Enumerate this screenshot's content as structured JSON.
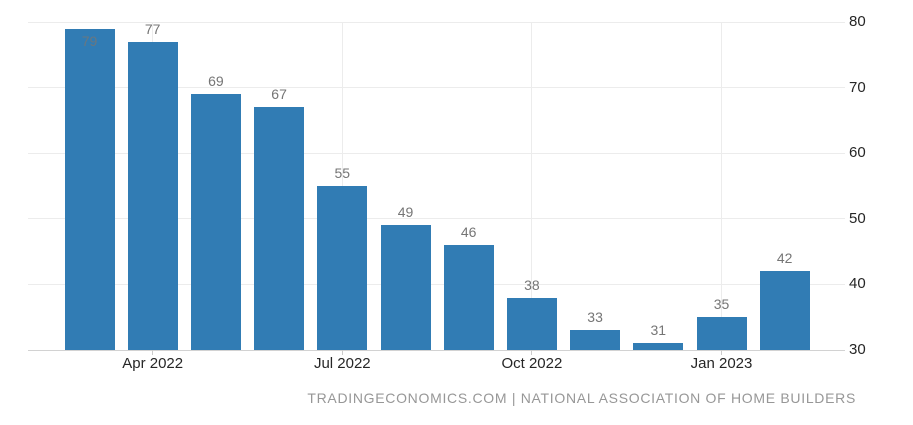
{
  "chart_data": {
    "type": "bar",
    "title": "",
    "xlabel": "",
    "ylabel": "",
    "values": [
      79,
      77,
      69,
      67,
      55,
      49,
      46,
      38,
      33,
      31,
      35,
      42
    ],
    "x_ticks": [
      {
        "label": "Apr 2022",
        "bar_index": 1
      },
      {
        "label": "Jul 2022",
        "bar_index": 4
      },
      {
        "label": "Oct 2022",
        "bar_index": 7
      },
      {
        "label": "Jan 2023",
        "bar_index": 10
      }
    ],
    "y_ticks": [
      30,
      40,
      50,
      60,
      70,
      80
    ],
    "ylim": [
      30,
      80
    ],
    "y_axis_position": "right",
    "grid": true,
    "value_labels_shown": true,
    "first_value_label_inside_bar": true,
    "colors": {
      "bar": "#317cb4",
      "value_label": "#757575",
      "value_label_inside": "#697780",
      "axis_label": "#262626",
      "gridline": "#ececec",
      "axis_line": "#d2d2d2",
      "tick": "#cccccc"
    }
  },
  "footer": {
    "credit": "TRADINGECONOMICS.COM | NATIONAL ASSOCIATION OF HOME BUILDERS",
    "color": "#979797"
  }
}
